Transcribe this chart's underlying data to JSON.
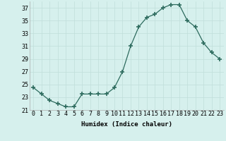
{
  "x": [
    0,
    1,
    2,
    3,
    4,
    5,
    6,
    7,
    8,
    9,
    10,
    11,
    12,
    13,
    14,
    15,
    16,
    17,
    18,
    19,
    20,
    21,
    22,
    23
  ],
  "y": [
    24.5,
    23.5,
    22.5,
    22.0,
    21.5,
    21.5,
    23.5,
    23.5,
    23.5,
    23.5,
    24.5,
    27.0,
    31.0,
    34.0,
    35.5,
    36.0,
    37.0,
    37.5,
    37.5,
    35.0,
    34.0,
    31.5,
    30.0,
    29.0
  ],
  "xlabel": "Humidex (Indice chaleur)",
  "ylim": [
    21,
    38
  ],
  "xlim": [
    -0.5,
    23.5
  ],
  "yticks": [
    21,
    23,
    25,
    27,
    29,
    31,
    33,
    35,
    37
  ],
  "xtick_labels": [
    "0",
    "1",
    "2",
    "3",
    "4",
    "5",
    "6",
    "7",
    "8",
    "9",
    "10",
    "11",
    "12",
    "13",
    "14",
    "15",
    "16",
    "17",
    "18",
    "19",
    "20",
    "21",
    "22",
    "23"
  ],
  "line_color": "#2d6b5e",
  "marker": "+",
  "marker_size": 4,
  "bg_color": "#d6f0ed",
  "grid_color": "#c0deda",
  "label_fontsize": 6.5,
  "tick_fontsize": 6
}
